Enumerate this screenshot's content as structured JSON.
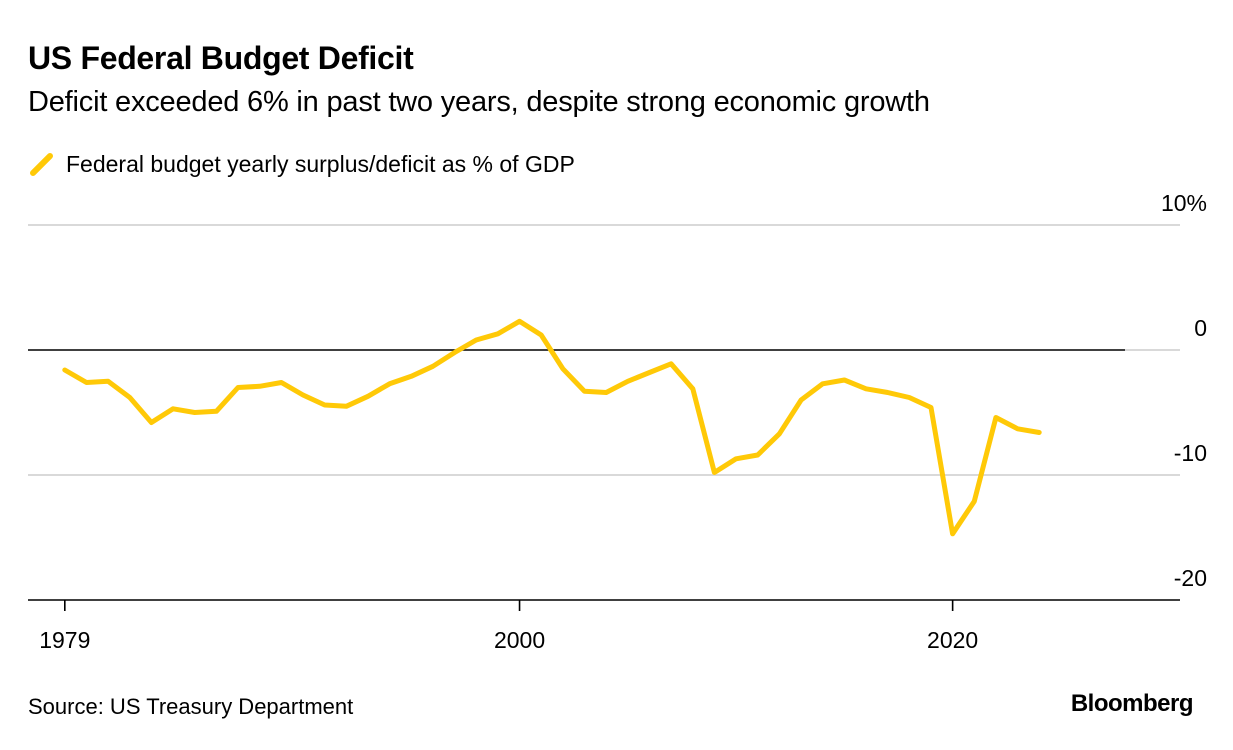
{
  "header": {
    "title": "US Federal Budget Deficit",
    "subtitle": "Deficit exceeded 6% in past two years, despite strong economic growth"
  },
  "legend": {
    "label": "Federal budget yearly surplus/deficit as % of GDP",
    "color": "#FFC907"
  },
  "footer": {
    "source": "Source: US Treasury Department",
    "brand": "Bloomberg"
  },
  "chart_data": {
    "type": "line",
    "title": "US Federal Budget Deficit",
    "subtitle": "Deficit exceeded 6% in past two years, despite strong economic growth",
    "xlabel": "",
    "ylabel": "",
    "xlim": [
      1977.3,
      2030.5
    ],
    "ylim": [
      -20,
      10
    ],
    "x_ticks": [
      1979,
      2000,
      2020
    ],
    "x_tick_labels": [
      "1979",
      "2000",
      "2020"
    ],
    "y_ticks": [
      10,
      0,
      -10,
      -20
    ],
    "y_tick_labels": [
      "10%",
      "0",
      "-10",
      "-20"
    ],
    "grid": "horizontal",
    "legend_position": "top-left",
    "series": [
      {
        "name": "Federal budget yearly surplus/deficit as % of GDP",
        "color": "#FFC907",
        "x": [
          1979,
          1980,
          1981,
          1982,
          1983,
          1984,
          1985,
          1986,
          1987,
          1988,
          1989,
          1990,
          1991,
          1992,
          1993,
          1994,
          1995,
          1996,
          1997,
          1998,
          1999,
          2000,
          2001,
          2002,
          2003,
          2004,
          2005,
          2006,
          2007,
          2008,
          2009,
          2010,
          2011,
          2012,
          2013,
          2014,
          2015,
          2016,
          2017,
          2018,
          2019,
          2020,
          2021,
          2022,
          2023,
          2024
        ],
        "values": [
          -1.6,
          -2.6,
          -2.5,
          -3.8,
          -5.8,
          -4.7,
          -5.0,
          -4.9,
          -3.0,
          -2.9,
          -2.6,
          -3.6,
          -4.4,
          -4.5,
          -3.7,
          -2.7,
          -2.1,
          -1.3,
          -0.2,
          0.8,
          1.3,
          2.3,
          1.2,
          -1.5,
          -3.3,
          -3.4,
          -2.5,
          -1.8,
          -1.1,
          -3.1,
          -9.8,
          -8.7,
          -8.4,
          -6.7,
          -4.0,
          -2.7,
          -2.4,
          -3.1,
          -3.4,
          -3.8,
          -4.6,
          -14.7,
          -12.1,
          -5.4,
          -6.3,
          -6.6
        ]
      }
    ]
  }
}
